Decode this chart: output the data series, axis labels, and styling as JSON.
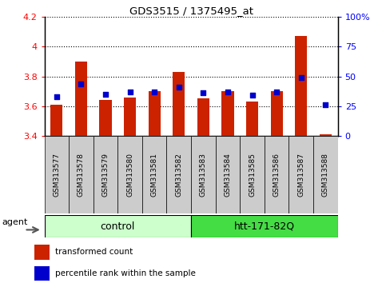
{
  "title": "GDS3515 / 1375495_at",
  "samples": [
    "GSM313577",
    "GSM313578",
    "GSM313579",
    "GSM313580",
    "GSM313581",
    "GSM313582",
    "GSM313583",
    "GSM313584",
    "GSM313585",
    "GSM313586",
    "GSM313587",
    "GSM313588"
  ],
  "red_values": [
    3.61,
    3.9,
    3.64,
    3.66,
    3.7,
    3.83,
    3.65,
    3.7,
    3.63,
    3.7,
    4.07,
    3.41
  ],
  "blue_values_pct": [
    33.0,
    44.0,
    35.0,
    37.0,
    37.0,
    41.0,
    36.0,
    37.0,
    34.0,
    37.0,
    49.0,
    26.0
  ],
  "ylim_left": [
    3.4,
    4.2
  ],
  "ylim_right": [
    0,
    100
  ],
  "yticks_left": [
    3.4,
    3.6,
    3.8,
    4.0,
    4.2
  ],
  "ytick_labels_left": [
    "3.4",
    "3.6",
    "3.8",
    "4",
    "4.2"
  ],
  "yticks_right": [
    0,
    25,
    50,
    75,
    100
  ],
  "ytick_labels_right": [
    "0",
    "25",
    "50",
    "75",
    "100%"
  ],
  "groups": [
    {
      "label": "control",
      "start": 0,
      "end": 5,
      "color": "#ccffcc"
    },
    {
      "label": "htt-171-82Q",
      "start": 6,
      "end": 11,
      "color": "#44dd44"
    }
  ],
  "bar_color": "#cc2200",
  "dot_color": "#0000cc",
  "bar_width": 0.5,
  "base": 3.4,
  "bg_sample_color": "#cccccc",
  "xlim": [
    -0.5,
    11.5
  ]
}
